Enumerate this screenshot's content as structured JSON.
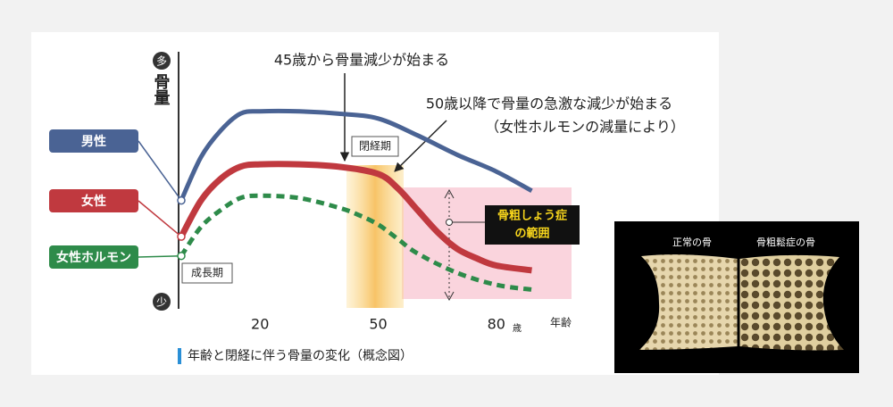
{
  "chart_data": {
    "type": "line",
    "caption": "年齢と閉経に伴う骨量の変化（概念図）",
    "y_label": "骨量",
    "x_label": "年齢",
    "x_unit": "歳",
    "xlim": [
      0,
      100
    ],
    "xticks": [
      20,
      50,
      80
    ],
    "ylim": [
      0,
      100
    ],
    "yticks": [
      {
        "value": 100,
        "label": "多"
      },
      {
        "value": 0,
        "label": "少"
      }
    ],
    "series": [
      {
        "name": "男性",
        "color": "#4a6394",
        "style": "solid",
        "x": [
          0,
          5,
          10,
          15,
          20,
          30,
          40,
          50,
          60,
          70,
          80,
          89
        ],
        "values": [
          42,
          60,
          71,
          78,
          79,
          79,
          78,
          76,
          69,
          61,
          54,
          46
        ]
      },
      {
        "name": "女性",
        "color": "#c0393f",
        "style": "solid",
        "x": [
          0,
          5,
          10,
          15,
          20,
          30,
          40,
          50,
          55,
          60,
          65,
          70,
          75,
          80,
          89
        ],
        "values": [
          27,
          42,
          51,
          56,
          57,
          57,
          56,
          53,
          47,
          38,
          29,
          22,
          18,
          15,
          13
        ]
      },
      {
        "name": "女性ホルモン",
        "color": "#2e8b4a",
        "style": "dashed",
        "x": [
          0,
          5,
          10,
          15,
          20,
          30,
          40,
          45,
          50,
          55,
          60,
          70,
          80,
          89
        ],
        "values": [
          19,
          31,
          38,
          43,
          44,
          43,
          39,
          36,
          32,
          26,
          20,
          12,
          7,
          5
        ]
      }
    ],
    "annotations": {
      "decline_45": "45歳から骨量減少が始まる",
      "decline_50": "50歳以降で骨量の急激な減少が始まる",
      "decline_50_note": "（女性ホルモンの減量により）",
      "menopause": "閉経期",
      "growth": "成長期",
      "osteoporosis": [
        "骨粗しょう症",
        "の範囲"
      ]
    }
  },
  "photo": {
    "labels": [
      "正常の骨",
      "骨粗鬆症の骨"
    ]
  }
}
